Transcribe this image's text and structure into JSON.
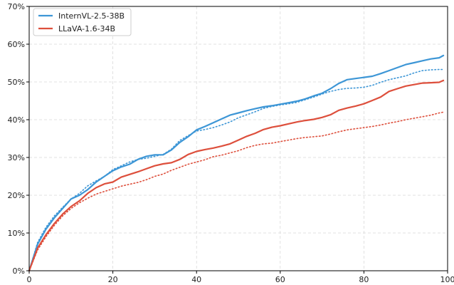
{
  "chart_data": {
    "type": "line",
    "title": "",
    "xlabel": "",
    "ylabel": "",
    "xlim": [
      0,
      100
    ],
    "ylim": [
      0,
      70
    ],
    "xticks": [
      0,
      20,
      40,
      60,
      80,
      100
    ],
    "yticks": [
      0,
      10,
      20,
      30,
      40,
      50,
      60,
      70
    ],
    "xtick_labels": [
      "0",
      "20",
      "40",
      "60",
      "80",
      "100"
    ],
    "ytick_labels": [
      "0%",
      "10%",
      "20%",
      "30%",
      "40%",
      "50%",
      "60%",
      "70%"
    ],
    "grid": true,
    "legend_position": "top-left",
    "legend": [
      {
        "label": "InternVL-2.5-38B",
        "color": "#3d96d6"
      },
      {
        "label": "LLaVA-1.6-34B",
        "color": "#dd4f3c"
      }
    ],
    "series": [
      {
        "name": "InternVL-2.5-38B",
        "color": "#3d96d6",
        "style": "solid",
        "x": [
          0,
          2,
          4,
          6,
          8,
          10,
          12,
          14,
          16,
          18,
          20,
          22,
          24,
          26,
          28,
          30,
          32,
          34,
          36,
          38,
          40,
          42,
          44,
          46,
          48,
          50,
          52,
          54,
          56,
          58,
          60,
          62,
          64,
          66,
          68,
          70,
          72,
          74,
          76,
          78,
          80,
          82,
          84,
          86,
          88,
          90,
          92,
          94,
          96,
          98,
          99
        ],
        "values": [
          0,
          7,
          11,
          14,
          16.5,
          19,
          20,
          21.5,
          23.5,
          25,
          26.5,
          27.5,
          28.2,
          29.5,
          30.3,
          30.7,
          30.7,
          32,
          34,
          35.5,
          37.3,
          38.2,
          39.2,
          40.2,
          41.2,
          41.8,
          42.4,
          42.9,
          43.4,
          43.7,
          44.1,
          44.5,
          44.9,
          45.5,
          46.3,
          47,
          48.2,
          49.6,
          50.6,
          50.9,
          51.2,
          51.5,
          52.2,
          53,
          53.8,
          54.6,
          55.1,
          55.6,
          56.1,
          56.4,
          57
        ]
      },
      {
        "name": "",
        "color": "#3d96d6",
        "style": "dotted",
        "x": [
          0,
          2,
          4,
          6,
          8,
          10,
          12,
          14,
          16,
          18,
          20,
          22,
          24,
          26,
          28,
          30,
          32,
          34,
          36,
          38,
          40,
          42,
          44,
          46,
          48,
          50,
          52,
          54,
          56,
          58,
          60,
          62,
          64,
          66,
          68,
          70,
          72,
          74,
          76,
          78,
          80,
          82,
          84,
          86,
          88,
          90,
          92,
          94,
          96,
          98,
          99
        ],
        "values": [
          0,
          7.5,
          11.5,
          14.5,
          16.8,
          19,
          20.5,
          22.5,
          23.8,
          25,
          26.8,
          27.8,
          28.8,
          29.5,
          29.8,
          30.3,
          30.8,
          32.2,
          34.5,
          35.8,
          37,
          37.4,
          37.9,
          38.6,
          39.4,
          40.5,
          41.3,
          42.1,
          43,
          43.5,
          43.9,
          44.2,
          44.6,
          45.3,
          46,
          46.8,
          47.5,
          48,
          48.3,
          48.4,
          48.6,
          49.1,
          49.9,
          50.6,
          51.1,
          51.6,
          52.4,
          53,
          53.2,
          53.3,
          53.3
        ]
      },
      {
        "name": "LLaVA-1.6-34B",
        "color": "#dd4f3c",
        "style": "solid",
        "x": [
          0,
          2,
          4,
          6,
          8,
          10,
          12,
          14,
          16,
          18,
          20,
          22,
          24,
          26,
          28,
          30,
          32,
          34,
          36,
          38,
          40,
          42,
          44,
          46,
          48,
          50,
          52,
          54,
          56,
          58,
          60,
          62,
          64,
          66,
          68,
          70,
          72,
          74,
          76,
          78,
          80,
          82,
          84,
          86,
          88,
          90,
          92,
          94,
          96,
          98,
          99
        ],
        "values": [
          0,
          6,
          9.5,
          12.5,
          15,
          17,
          18.5,
          20.5,
          22,
          23,
          23.5,
          24.8,
          25.5,
          26.2,
          27,
          27.8,
          28.3,
          28.6,
          29.5,
          30.8,
          31.6,
          32.1,
          32.5,
          33,
          33.6,
          34.6,
          35.6,
          36.4,
          37.4,
          38,
          38.4,
          38.9,
          39.4,
          39.8,
          40.1,
          40.6,
          41.3,
          42.5,
          43.1,
          43.6,
          44.2,
          45.1,
          46,
          47.5,
          48.2,
          48.9,
          49.3,
          49.7,
          49.8,
          49.9,
          50.4
        ]
      },
      {
        "name": "",
        "color": "#dd4f3c",
        "style": "dotted",
        "x": [
          0,
          2,
          4,
          6,
          8,
          10,
          12,
          14,
          16,
          18,
          20,
          22,
          24,
          26,
          28,
          30,
          32,
          34,
          36,
          38,
          40,
          42,
          44,
          46,
          48,
          50,
          52,
          54,
          56,
          58,
          60,
          62,
          64,
          66,
          68,
          70,
          72,
          74,
          76,
          78,
          80,
          82,
          84,
          86,
          88,
          90,
          92,
          94,
          96,
          98,
          99
        ],
        "values": [
          0,
          5.5,
          9,
          12,
          14.5,
          16.5,
          18,
          19.2,
          20.3,
          21,
          21.7,
          22.4,
          22.9,
          23.4,
          24.1,
          25,
          25.6,
          26.6,
          27.4,
          28.2,
          28.8,
          29.4,
          30.2,
          30.6,
          31.2,
          31.8,
          32.6,
          33.2,
          33.6,
          33.8,
          34.2,
          34.6,
          35,
          35.3,
          35.5,
          35.7,
          36.2,
          36.8,
          37.3,
          37.6,
          37.9,
          38.2,
          38.6,
          39.1,
          39.5,
          40,
          40.4,
          40.8,
          41.2,
          41.8,
          42
        ]
      }
    ]
  }
}
